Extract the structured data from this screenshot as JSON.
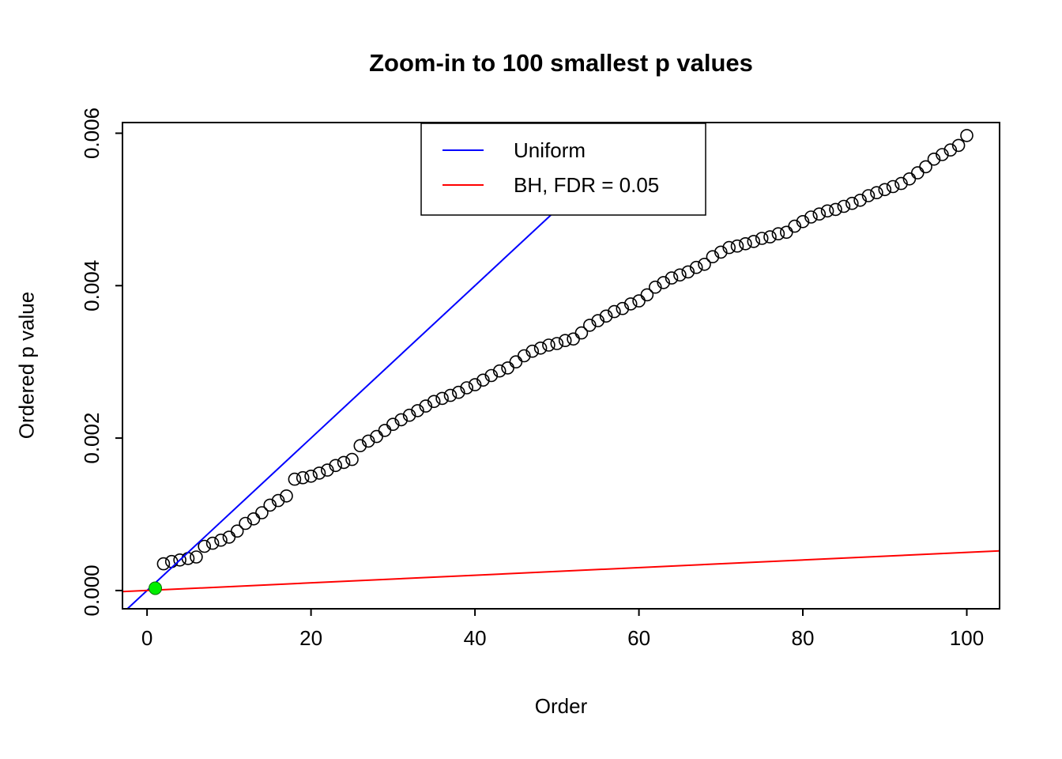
{
  "chart_data": {
    "type": "scatter",
    "title": "Zoom-in to 100 smallest p values",
    "xlabel": "Order",
    "ylabel": "Ordered p value",
    "xlim": [
      -3,
      104
    ],
    "ylim": [
      -0.00024,
      0.00614
    ],
    "x_ticks": [
      0,
      20,
      40,
      60,
      80,
      100
    ],
    "y_ticks": [
      0,
      0.002,
      0.004,
      0.006
    ],
    "y_tick_labels": [
      "0.000",
      "0.002",
      "0.004",
      "0.006"
    ],
    "grid": false,
    "points": {
      "x": [
        1,
        2,
        3,
        4,
        5,
        6,
        7,
        8,
        9,
        10,
        11,
        12,
        13,
        14,
        15,
        16,
        17,
        18,
        19,
        20,
        21,
        22,
        23,
        24,
        25,
        26,
        27,
        28,
        29,
        30,
        31,
        32,
        33,
        34,
        35,
        36,
        37,
        38,
        39,
        40,
        41,
        42,
        43,
        44,
        45,
        46,
        47,
        48,
        49,
        50,
        51,
        52,
        53,
        54,
        55,
        56,
        57,
        58,
        59,
        60,
        61,
        62,
        63,
        64,
        65,
        66,
        67,
        68,
        69,
        70,
        71,
        72,
        73,
        74,
        75,
        76,
        77,
        78,
        79,
        80,
        81,
        82,
        83,
        84,
        85,
        86,
        87,
        88,
        89,
        90,
        91,
        92,
        93,
        94,
        95,
        96,
        97,
        98,
        99,
        100
      ],
      "y": [
        3e-05,
        0.00035,
        0.00038,
        0.0004,
        0.00042,
        0.00044,
        0.00058,
        0.00062,
        0.00066,
        0.0007,
        0.00078,
        0.00088,
        0.00094,
        0.00102,
        0.00112,
        0.00118,
        0.00124,
        0.00146,
        0.00148,
        0.0015,
        0.00154,
        0.00158,
        0.00164,
        0.00168,
        0.00172,
        0.0019,
        0.00196,
        0.00202,
        0.0021,
        0.00218,
        0.00224,
        0.0023,
        0.00236,
        0.00242,
        0.00248,
        0.00252,
        0.00256,
        0.0026,
        0.00266,
        0.0027,
        0.00276,
        0.00282,
        0.00288,
        0.00292,
        0.003,
        0.00308,
        0.00314,
        0.00318,
        0.00322,
        0.00324,
        0.00328,
        0.0033,
        0.00338,
        0.00348,
        0.00354,
        0.0036,
        0.00366,
        0.0037,
        0.00376,
        0.0038,
        0.00388,
        0.00398,
        0.00404,
        0.0041,
        0.00414,
        0.00418,
        0.00424,
        0.00428,
        0.00438,
        0.00444,
        0.0045,
        0.00452,
        0.00455,
        0.00458,
        0.00462,
        0.00464,
        0.00468,
        0.0047,
        0.00478,
        0.00484,
        0.0049,
        0.00494,
        0.00498,
        0.005,
        0.00504,
        0.00508,
        0.00512,
        0.00518,
        0.00522,
        0.00526,
        0.0053,
        0.00534,
        0.0054,
        0.00548,
        0.00556,
        0.00566,
        0.00572,
        0.00578,
        0.00584,
        0.00597
      ]
    },
    "highlight_point": {
      "x": 1,
      "y": 3e-05,
      "color": "#00EE00"
    },
    "lines": [
      {
        "id": "uniform-line",
        "name": "Uniform",
        "color": "#0000FF",
        "slope": 0.0001,
        "intercept": 0
      },
      {
        "id": "bh-line",
        "name": "BH, FDR = 0.05",
        "color": "#FF0000",
        "slope": 5e-06,
        "intercept": 0
      }
    ],
    "legend": {
      "position": "top-center",
      "entries": [
        {
          "label": "Uniform",
          "color": "#0000FF"
        },
        {
          "label": "BH, FDR = 0.05",
          "color": "#FF0000"
        }
      ]
    },
    "point_color": "#000000",
    "background": "#FFFFFF"
  }
}
